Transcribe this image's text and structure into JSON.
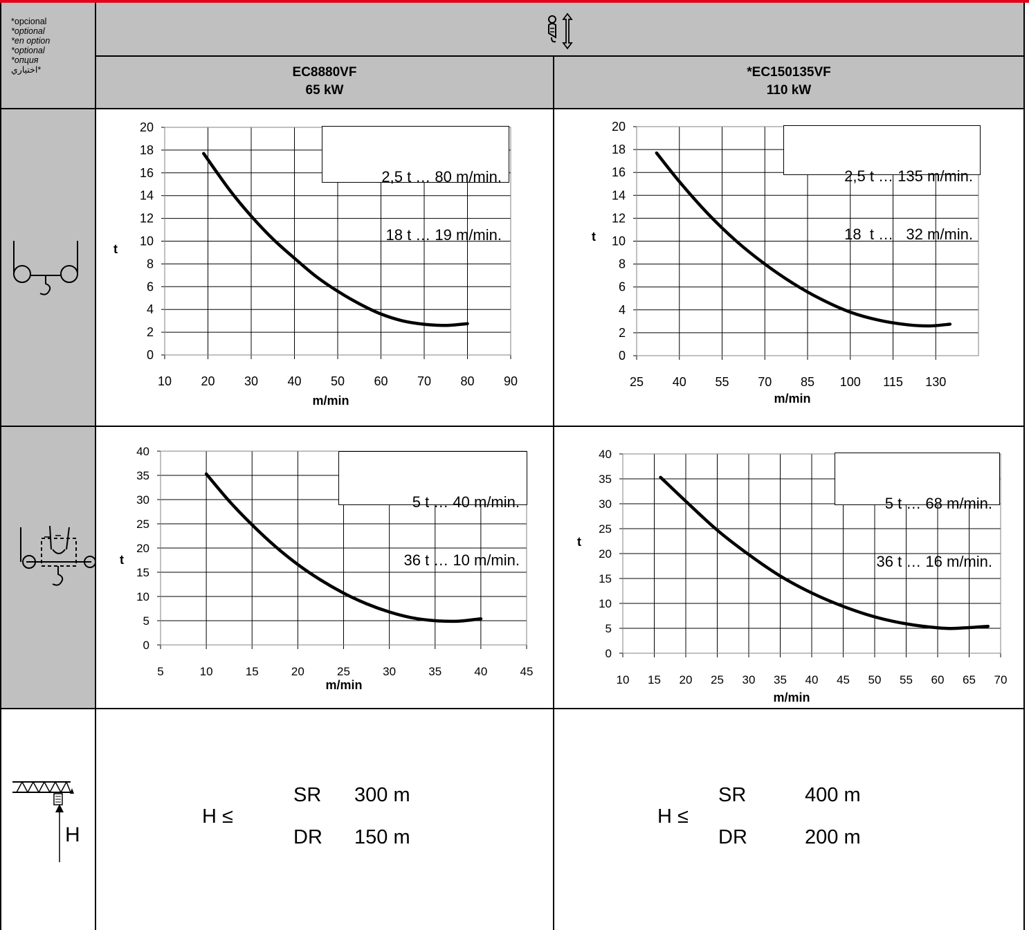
{
  "header": {
    "optional_labels": [
      "*opcional",
      "*optional",
      "*en option",
      "*optional",
      "*опция",
      "اختياري*"
    ],
    "hoist_icon": "hook-hoist-up-down-icon"
  },
  "models": [
    {
      "name": "EC8880VF",
      "power": "65 kW"
    },
    {
      "name": "*EC150135VF",
      "power": "110 kW"
    }
  ],
  "row_icons": [
    "single-reeving-hook-icon",
    "double-reeving-hook-icon",
    "crane-jib-height-icon"
  ],
  "height_icon_label": "H",
  "height": [
    {
      "label": "H ≤",
      "rows": [
        {
          "mode": "SR",
          "value": "300 m"
        },
        {
          "mode": "DR",
          "value": "150 m"
        }
      ]
    },
    {
      "label": "H ≤",
      "rows": [
        {
          "mode": "SR",
          "value": "400 m"
        },
        {
          "mode": "DR",
          "value": "200 m"
        }
      ]
    }
  ],
  "chart_data": [
    {
      "type": "line",
      "title": "",
      "xlabel": "m/min",
      "ylabel": "t",
      "xlim": [
        10,
        90
      ],
      "ylim": [
        0,
        20
      ],
      "xticks": [
        10,
        20,
        30,
        40,
        50,
        60,
        70,
        80,
        90
      ],
      "yticks": [
        0,
        2,
        4,
        6,
        8,
        10,
        12,
        14,
        16,
        18,
        20
      ],
      "grid": true,
      "annotation": [
        "2,5 t … 80 m/min.",
        " 18 t … 19 m/min."
      ],
      "series": [
        {
          "x": [
            19,
            25,
            30,
            35,
            40,
            45,
            50,
            55,
            60,
            65,
            70,
            75,
            80
          ],
          "y": [
            17.7,
            14.5,
            12.2,
            10.2,
            8.5,
            6.9,
            5.6,
            4.5,
            3.6,
            3.0,
            2.7,
            2.6,
            2.75
          ]
        }
      ]
    },
    {
      "type": "line",
      "title": "",
      "xlabel": "m/min",
      "ylabel": "t",
      "xlim": [
        25,
        145
      ],
      "ylim": [
        0,
        20
      ],
      "xticks": [
        25,
        40,
        55,
        70,
        85,
        100,
        115,
        130
      ],
      "yticks": [
        0,
        2,
        4,
        6,
        8,
        10,
        12,
        14,
        16,
        18,
        20
      ],
      "grid": true,
      "annotation": [
        "2,5 t … 135 m/min.",
        "18  t …   32 m/min."
      ],
      "series": [
        {
          "x": [
            32,
            40,
            50,
            60,
            70,
            80,
            90,
            100,
            110,
            120,
            128,
            135
          ],
          "y": [
            17.7,
            15.2,
            12.4,
            10.0,
            8.0,
            6.3,
            4.9,
            3.8,
            3.1,
            2.7,
            2.6,
            2.75
          ]
        }
      ]
    },
    {
      "type": "line",
      "title": "",
      "xlabel": "m/min",
      "ylabel": "t",
      "xlim": [
        5,
        45
      ],
      "ylim": [
        0,
        40
      ],
      "xticks": [
        5,
        10,
        15,
        20,
        25,
        30,
        35,
        40,
        45
      ],
      "yticks": [
        0,
        5,
        10,
        15,
        20,
        25,
        30,
        35,
        40
      ],
      "grid": true,
      "annotation": [
        "5 t … 40 m/min.",
        "36 t … 10 m/min."
      ],
      "series": [
        {
          "x": [
            10,
            12.5,
            15,
            17.5,
            20,
            22.5,
            25,
            27.5,
            30,
            32.5,
            35,
            37.5,
            40
          ],
          "y": [
            35.3,
            29.7,
            24.8,
            20.4,
            16.6,
            13.4,
            10.7,
            8.5,
            6.8,
            5.6,
            5.0,
            4.9,
            5.4
          ]
        }
      ]
    },
    {
      "type": "line",
      "title": "",
      "xlabel": "m/min",
      "ylabel": "t",
      "xlim": [
        10,
        70
      ],
      "ylim": [
        0,
        40
      ],
      "xticks": [
        10,
        15,
        20,
        25,
        30,
        35,
        40,
        45,
        50,
        55,
        60,
        65,
        70
      ],
      "yticks": [
        0,
        5,
        10,
        15,
        20,
        25,
        30,
        35,
        40
      ],
      "grid": true,
      "annotation": [
        "5 t … 68 m/min.",
        "36 t … 16 m/min."
      ],
      "series": [
        {
          "x": [
            16,
            20,
            25,
            30,
            35,
            40,
            45,
            50,
            55,
            60,
            63,
            68
          ],
          "y": [
            35.3,
            30.5,
            24.7,
            19.8,
            15.5,
            12.1,
            9.4,
            7.3,
            5.9,
            5.1,
            5.0,
            5.4
          ]
        }
      ]
    }
  ]
}
